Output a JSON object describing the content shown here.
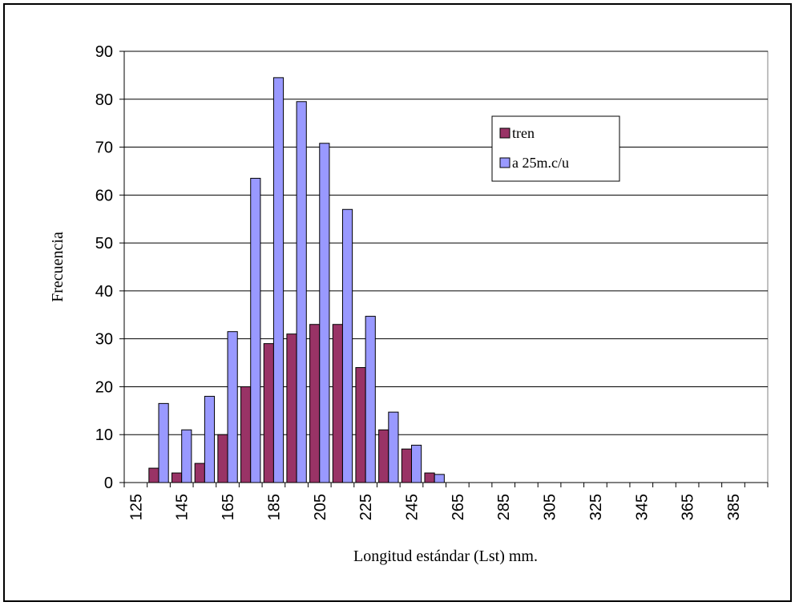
{
  "chart_data": {
    "type": "bar",
    "xlabel": "Longitud estándar (Lst) mm.",
    "ylabel": "Frecuencia",
    "categories": [
      "125",
      null,
      "145",
      null,
      "165",
      null,
      "185",
      null,
      "205",
      null,
      "225",
      null,
      "245",
      null,
      "265",
      null,
      "285",
      null,
      "305",
      null,
      "325",
      null,
      "345",
      null,
      "365",
      null,
      "385",
      null
    ],
    "series": [
      {
        "name": "tren",
        "color": "#993366",
        "values": [
          0,
          3,
          2,
          4,
          10,
          20,
          29,
          31,
          33,
          33,
          24,
          11,
          7,
          2,
          0,
          0,
          0,
          0,
          0,
          0,
          0,
          0,
          0,
          0,
          0,
          0,
          0,
          0
        ]
      },
      {
        "name": "a 25m.c/u",
        "color": "#9999ff",
        "values": [
          0,
          16.5,
          11,
          18,
          31.5,
          63.5,
          84.5,
          79.5,
          70.8,
          57,
          34.7,
          14.7,
          7.8,
          1.7,
          0,
          0,
          0,
          0,
          0,
          0,
          0,
          0,
          0,
          0,
          0,
          0,
          0,
          0
        ]
      }
    ],
    "ylim": [
      0,
      90
    ],
    "yticks": [
      0,
      10,
      20,
      30,
      40,
      50,
      60,
      70,
      80,
      90
    ],
    "grid": true
  }
}
